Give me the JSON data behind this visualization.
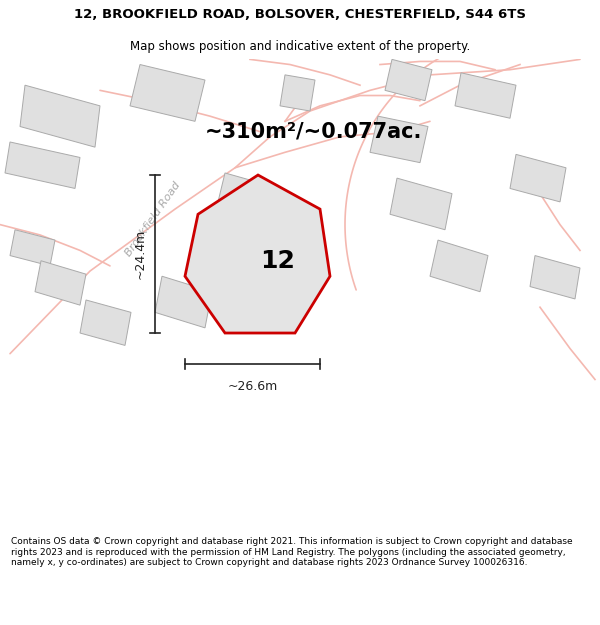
{
  "title": "12, BROOKFIELD ROAD, BOLSOVER, CHESTERFIELD, S44 6TS",
  "subtitle": "Map shows position and indicative extent of the property.",
  "area_text": "~310m²/~0.077ac.",
  "property_number": "12",
  "dim_width": "~26.6m",
  "dim_height": "~24.4m",
  "road_label": "Brookfield Road",
  "footer": "Contains OS data © Crown copyright and database right 2021. This information is subject to Crown copyright and database rights 2023 and is reproduced with the permission of HM Land Registry. The polygons (including the associated geometry, namely x, y co-ordinates) are subject to Crown copyright and database rights 2023 Ordnance Survey 100026316.",
  "bg_color": "#f8f8f8",
  "property_fill": "#e4e4e4",
  "property_edge": "#cc0000",
  "road_color": "#f4b8b0",
  "building_fill": "#e0e0e0",
  "building_edge": "#aaaaaa",
  "dim_color": "#222222",
  "label_color": "#aaaaaa",
  "title_size": 9.5,
  "subtitle_size": 8.5,
  "area_size": 15,
  "prop_num_size": 18,
  "footer_size": 6.5
}
